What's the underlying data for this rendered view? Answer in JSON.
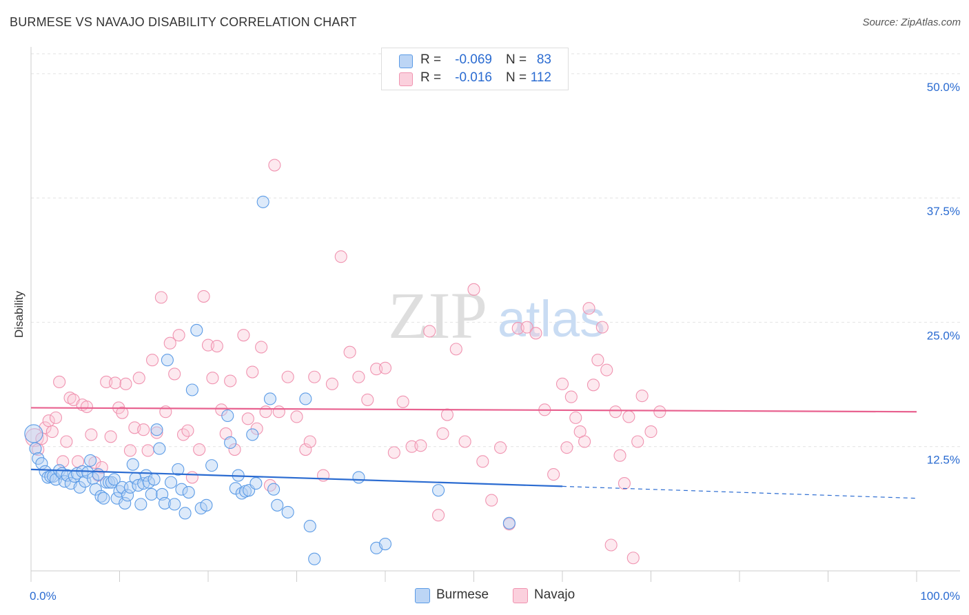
{
  "header": {
    "title": "BURMESE VS NAVAJO DISABILITY CORRELATION CHART",
    "source": "Source: ZipAtlas.com"
  },
  "watermark": {
    "zip": "ZIP",
    "atlas": "atlas"
  },
  "legend": {
    "rows": [
      {
        "r_label": "R =",
        "r_value": "-0.069",
        "n_label": "N =",
        "n_value": "83",
        "color": "#5b9be6"
      },
      {
        "r_label": "R =",
        "r_value": "-0.016",
        "n_label": "N =",
        "n_value": "112",
        "color": "#f093b0"
      }
    ]
  },
  "bottom_legend": [
    "Burmese",
    "Navajo"
  ],
  "chart_data": {
    "type": "scatter",
    "title": "BURMESE VS NAVAJO DISABILITY CORRELATION CHART",
    "xlabel": "",
    "ylabel": "Disability",
    "xlim": [
      0,
      100
    ],
    "ylim": [
      0,
      52
    ],
    "x_tick_labels": [
      "0.0%",
      "100.0%"
    ],
    "y_ticks": [
      12.5,
      25.0,
      37.5,
      50.0
    ],
    "y_tick_labels": [
      "12.5%",
      "25.0%",
      "37.5%",
      "50.0%"
    ],
    "grid": true,
    "legend_position": "top-center",
    "series": [
      {
        "name": "Burmese",
        "color": "#5b9be6",
        "trend": {
          "x": [
            0,
            60
          ],
          "y": [
            10.2,
            8.5
          ],
          "dashed_to": [
            100,
            7.3
          ]
        },
        "points": [
          [
            0.3,
            13.8
          ],
          [
            0.5,
            12.3
          ],
          [
            0.8,
            11.3
          ],
          [
            1.2,
            10.8
          ],
          [
            1.6,
            10.0
          ],
          [
            1.9,
            9.4
          ],
          [
            2.2,
            9.5
          ],
          [
            2.5,
            9.5
          ],
          [
            2.8,
            9.2
          ],
          [
            3.2,
            10.1
          ],
          [
            3.5,
            9.8
          ],
          [
            3.8,
            9.0
          ],
          [
            4.1,
            9.6
          ],
          [
            4.5,
            8.8
          ],
          [
            4.9,
            9.5
          ],
          [
            5.2,
            9.8
          ],
          [
            5.5,
            8.4
          ],
          [
            5.8,
            10.0
          ],
          [
            6.1,
            9.0
          ],
          [
            6.4,
            9.9
          ],
          [
            6.7,
            11.1
          ],
          [
            7.0,
            9.3
          ],
          [
            7.3,
            8.2
          ],
          [
            7.6,
            9.7
          ],
          [
            7.9,
            7.5
          ],
          [
            8.2,
            7.3
          ],
          [
            8.5,
            8.9
          ],
          [
            8.8,
            8.9
          ],
          [
            9.1,
            8.9
          ],
          [
            9.4,
            9.2
          ],
          [
            9.7,
            7.3
          ],
          [
            10.0,
            8.0
          ],
          [
            10.3,
            8.4
          ],
          [
            10.6,
            6.8
          ],
          [
            10.9,
            7.6
          ],
          [
            11.2,
            8.4
          ],
          [
            11.5,
            10.7
          ],
          [
            11.8,
            9.3
          ],
          [
            12.1,
            8.6
          ],
          [
            12.4,
            6.7
          ],
          [
            12.7,
            8.8
          ],
          [
            13.0,
            9.6
          ],
          [
            13.3,
            8.9
          ],
          [
            13.6,
            7.7
          ],
          [
            13.9,
            9.2
          ],
          [
            14.2,
            14.2
          ],
          [
            14.5,
            12.3
          ],
          [
            14.8,
            7.7
          ],
          [
            15.1,
            6.8
          ],
          [
            15.4,
            21.2
          ],
          [
            15.8,
            8.9
          ],
          [
            16.2,
            6.7
          ],
          [
            16.6,
            10.2
          ],
          [
            17.0,
            8.2
          ],
          [
            17.4,
            5.8
          ],
          [
            17.8,
            7.9
          ],
          [
            18.2,
            18.2
          ],
          [
            18.7,
            24.2
          ],
          [
            19.2,
            6.3
          ],
          [
            19.8,
            6.6
          ],
          [
            20.4,
            10.6
          ],
          [
            22.2,
            15.6
          ],
          [
            22.5,
            12.9
          ],
          [
            23.1,
            8.3
          ],
          [
            23.4,
            9.6
          ],
          [
            23.8,
            7.8
          ],
          [
            24.2,
            8.0
          ],
          [
            24.6,
            8.1
          ],
          [
            25.0,
            13.7
          ],
          [
            25.4,
            8.8
          ],
          [
            26.2,
            37.1
          ],
          [
            27.0,
            17.3
          ],
          [
            27.4,
            8.2
          ],
          [
            27.8,
            6.6
          ],
          [
            29.0,
            5.9
          ],
          [
            31.0,
            17.3
          ],
          [
            31.5,
            4.5
          ],
          [
            32.0,
            1.2
          ],
          [
            37.0,
            9.4
          ],
          [
            39.0,
            2.3
          ],
          [
            40.0,
            2.7
          ],
          [
            46.0,
            8.1
          ],
          [
            54.0,
            4.8
          ]
        ]
      },
      {
        "name": "Navajo",
        "color": "#f093b0",
        "trend": {
          "x": [
            0,
            100
          ],
          "y": [
            16.4,
            16.0
          ]
        },
        "points": [
          [
            0.4,
            13.4
          ],
          [
            0.8,
            12.2
          ],
          [
            1.2,
            13.3
          ],
          [
            1.6,
            14.4
          ],
          [
            2.0,
            15.1
          ],
          [
            2.4,
            14.0
          ],
          [
            2.8,
            15.4
          ],
          [
            3.2,
            19.0
          ],
          [
            3.6,
            11.0
          ],
          [
            4.0,
            13.0
          ],
          [
            4.4,
            17.4
          ],
          [
            4.8,
            17.2
          ],
          [
            5.3,
            11.0
          ],
          [
            5.8,
            16.7
          ],
          [
            6.3,
            16.5
          ],
          [
            6.8,
            13.7
          ],
          [
            7.2,
            10.9
          ],
          [
            7.6,
            9.6
          ],
          [
            8.0,
            10.4
          ],
          [
            8.5,
            19.0
          ],
          [
            9.0,
            13.5
          ],
          [
            9.5,
            18.9
          ],
          [
            9.9,
            16.4
          ],
          [
            10.3,
            15.9
          ],
          [
            10.7,
            18.8
          ],
          [
            11.2,
            12.1
          ],
          [
            11.7,
            14.4
          ],
          [
            12.2,
            19.4
          ],
          [
            12.7,
            14.2
          ],
          [
            13.2,
            12.1
          ],
          [
            13.7,
            21.2
          ],
          [
            14.2,
            13.9
          ],
          [
            14.7,
            27.5
          ],
          [
            15.2,
            16.0
          ],
          [
            15.7,
            22.9
          ],
          [
            16.2,
            19.8
          ],
          [
            16.7,
            23.7
          ],
          [
            17.2,
            13.7
          ],
          [
            17.7,
            14.1
          ],
          [
            18.2,
            9.4
          ],
          [
            19.0,
            12.2
          ],
          [
            19.5,
            27.6
          ],
          [
            20.0,
            22.7
          ],
          [
            20.5,
            19.4
          ],
          [
            21.0,
            22.6
          ],
          [
            21.5,
            16.2
          ],
          [
            22.0,
            13.8
          ],
          [
            22.5,
            19.1
          ],
          [
            23.0,
            12.2
          ],
          [
            24.0,
            23.7
          ],
          [
            24.5,
            15.3
          ],
          [
            25.0,
            20.0
          ],
          [
            25.5,
            14.3
          ],
          [
            26.0,
            22.5
          ],
          [
            26.5,
            16.0
          ],
          [
            27.0,
            8.6
          ],
          [
            27.5,
            40.8
          ],
          [
            28.0,
            16.0
          ],
          [
            29.0,
            19.5
          ],
          [
            30.0,
            15.5
          ],
          [
            31.0,
            12.2
          ],
          [
            31.5,
            13.0
          ],
          [
            32.0,
            19.5
          ],
          [
            33.0,
            9.6
          ],
          [
            34.0,
            18.8
          ],
          [
            35.0,
            31.6
          ],
          [
            36.0,
            22.0
          ],
          [
            37.0,
            19.5
          ],
          [
            38.0,
            17.2
          ],
          [
            39.0,
            20.3
          ],
          [
            40.0,
            20.4
          ],
          [
            41.0,
            11.9
          ],
          [
            42.0,
            17.0
          ],
          [
            43.0,
            12.5
          ],
          [
            44.0,
            12.6
          ],
          [
            45.0,
            24.1
          ],
          [
            46.0,
            5.6
          ],
          [
            46.5,
            13.8
          ],
          [
            47.0,
            15.7
          ],
          [
            48.0,
            22.3
          ],
          [
            49.0,
            13.0
          ],
          [
            50.0,
            28.3
          ],
          [
            51.0,
            11.0
          ],
          [
            52.0,
            7.1
          ],
          [
            53.0,
            12.4
          ],
          [
            54.0,
            4.7
          ],
          [
            55.0,
            24.4
          ],
          [
            56.0,
            24.5
          ],
          [
            57.0,
            23.9
          ],
          [
            58.0,
            16.2
          ],
          [
            59.0,
            9.7
          ],
          [
            60.0,
            18.8
          ],
          [
            60.5,
            12.4
          ],
          [
            61.0,
            17.5
          ],
          [
            61.5,
            15.4
          ],
          [
            62.0,
            14.0
          ],
          [
            62.5,
            13.0
          ],
          [
            63.0,
            26.4
          ],
          [
            63.5,
            18.7
          ],
          [
            64.0,
            21.2
          ],
          [
            64.5,
            24.5
          ],
          [
            65.0,
            20.2
          ],
          [
            65.5,
            2.6
          ],
          [
            66.0,
            16.0
          ],
          [
            66.5,
            11.6
          ],
          [
            67.0,
            8.8
          ],
          [
            67.5,
            15.5
          ],
          [
            68.0,
            1.3
          ],
          [
            68.5,
            13.0
          ],
          [
            69.0,
            17.6
          ],
          [
            70.0,
            14.0
          ],
          [
            71.0,
            16.0
          ]
        ]
      }
    ]
  }
}
